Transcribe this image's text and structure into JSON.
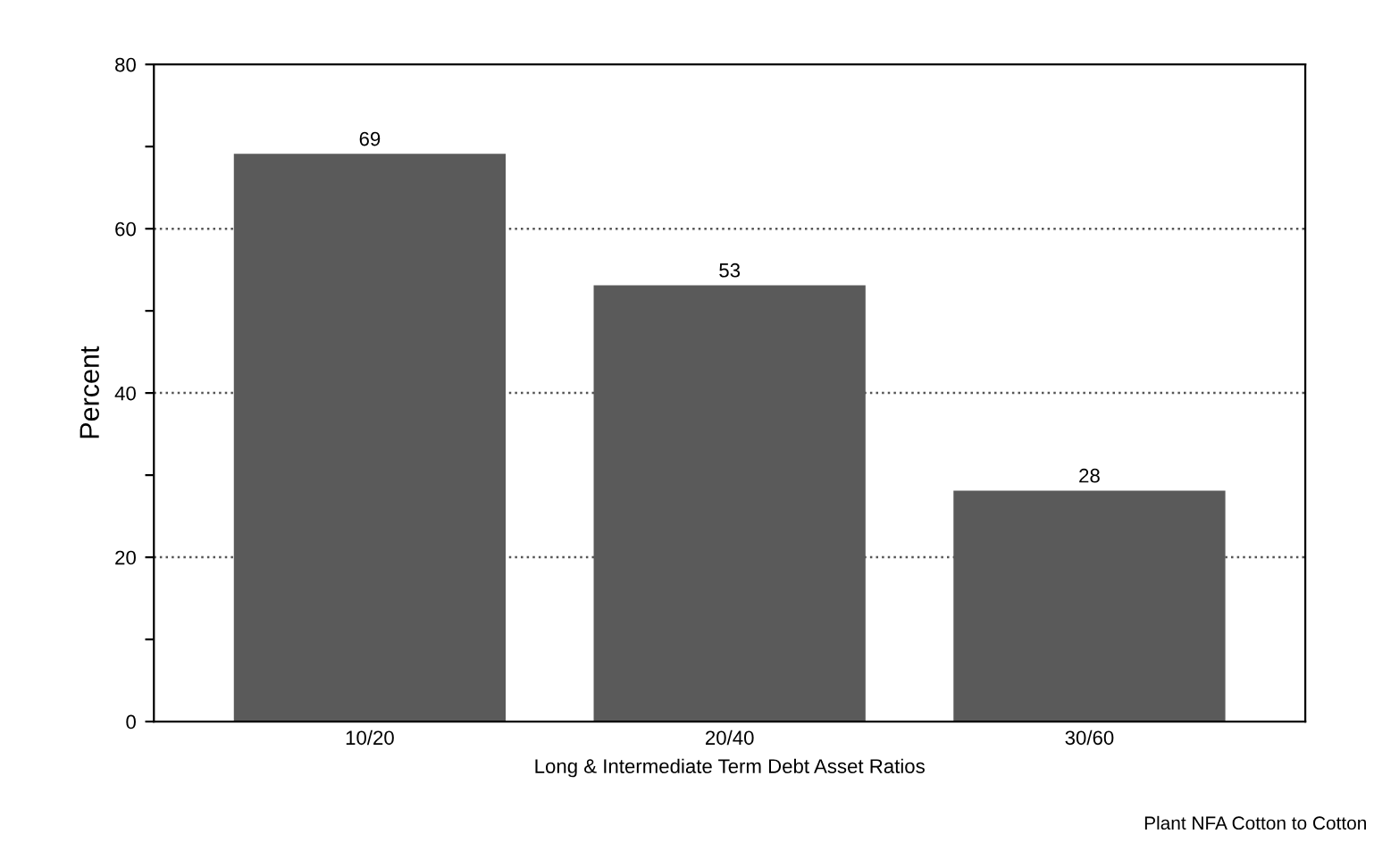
{
  "chart_data": {
    "type": "bar",
    "xlabel": "Long & Intermediate Term Debt Asset Ratios",
    "ylabel": "Percent",
    "categories": [
      "10/20",
      "20/40",
      "30/60"
    ],
    "values": [
      69,
      53,
      28
    ],
    "color": "#5a5a5a",
    "data_labels": true,
    "ylim": [
      0,
      80
    ],
    "yticks": [
      0,
      {
        "value": 10,
        "label": null
      },
      20,
      {
        "value": 30,
        "label": null
      },
      40,
      {
        "value": 50,
        "label": null
      },
      60,
      {
        "value": 70,
        "label": null
      },
      80
    ],
    "grid": "y",
    "line_style": "dotted",
    "annotations": [
      "Plant NFA Cotton to Cotton"
    ]
  }
}
